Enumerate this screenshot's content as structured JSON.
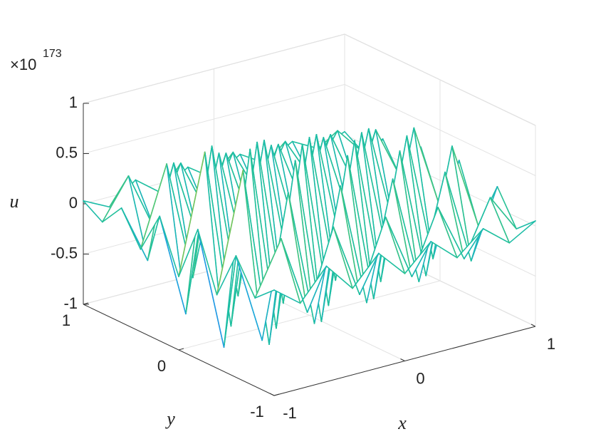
{
  "chart_data": {
    "type": "mesh",
    "xlabel": "x",
    "ylabel": "y",
    "zlabel": "u",
    "exponent_label": {
      "base": "×10",
      "power": "173"
    },
    "x": [
      -1,
      -0.8,
      -0.6,
      -0.4,
      -0.2,
      0,
      0.2,
      0.4,
      0.6,
      0.8,
      1
    ],
    "y": [
      -1,
      -0.8,
      -0.6,
      -0.4,
      -0.2,
      0,
      0.2,
      0.4,
      0.6,
      0.8,
      1
    ],
    "z": [
      [
        0.05,
        -0.15,
        0.15,
        -0.14,
        0.14,
        -0.13,
        0.12,
        -0.11,
        0.11,
        -0.1,
        0.05
      ],
      [
        -0.12,
        0.4,
        -0.4,
        0.38,
        -0.36,
        0.34,
        -0.32,
        0.3,
        -0.28,
        0.26,
        -0.12
      ],
      [
        0.21,
        -0.7,
        0.7,
        -0.67,
        0.63,
        -0.6,
        0.56,
        -0.53,
        0.49,
        -0.46,
        0.21
      ],
      [
        -0.27,
        0.9,
        -0.9,
        0.86,
        -0.81,
        0.77,
        -0.72,
        0.68,
        -0.63,
        0.59,
        -0.27
      ],
      [
        0.29,
        -0.95,
        0.95,
        -0.9,
        0.86,
        -0.81,
        0.76,
        -0.71,
        0.67,
        -0.62,
        0.29
      ],
      [
        -0.27,
        0.9,
        -0.9,
        0.86,
        -0.81,
        0.77,
        -0.72,
        0.68,
        -0.63,
        0.59,
        -0.27
      ],
      [
        0.24,
        -0.8,
        0.8,
        -0.76,
        0.72,
        -0.68,
        0.64,
        -0.6,
        0.56,
        -0.52,
        0.24
      ],
      [
        -0.18,
        0.6,
        -0.6,
        0.57,
        -0.54,
        0.51,
        -0.48,
        0.45,
        -0.42,
        0.39,
        -0.18
      ],
      [
        0.14,
        -0.45,
        0.45,
        -0.43,
        0.41,
        -0.38,
        0.36,
        -0.34,
        0.32,
        -0.29,
        0.14
      ],
      [
        -0.09,
        0.3,
        -0.3,
        0.29,
        -0.27,
        0.26,
        -0.24,
        0.23,
        -0.21,
        0.2,
        -0.09
      ],
      [
        0.03,
        -0.1,
        0.1,
        -0.1,
        0.09,
        -0.09,
        0.08,
        -0.08,
        0.07,
        -0.07,
        0.03
      ]
    ],
    "xlim": [
      -1,
      1
    ],
    "ylim": [
      -1,
      1
    ],
    "zlim": [
      -1,
      1
    ],
    "xticks": [
      -1,
      0,
      1
    ],
    "yticks": [
      -1,
      0,
      1
    ],
    "zticks": [
      -1,
      -0.5,
      0,
      0.5,
      1
    ],
    "grid": true,
    "colormap": [
      "#3e26a8",
      "#4443e6",
      "#2e7ef7",
      "#1fa8db",
      "#1dbfa0",
      "#5bc86e",
      "#b4be36",
      "#f5bd3b",
      "#f9fb0e"
    ]
  }
}
